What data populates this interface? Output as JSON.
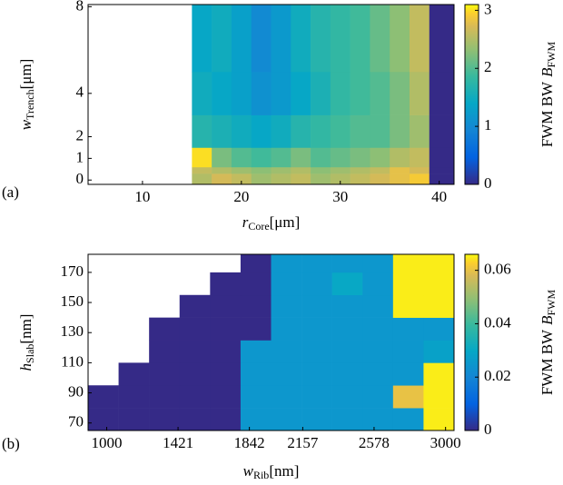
{
  "chart_data": [
    {
      "type": "heatmap",
      "panel_label": "(a)",
      "xlabel": {
        "symbol": "r",
        "subscript": "Core",
        "unit": "[μm]"
      },
      "ylabel": {
        "symbol": "w",
        "subscript": "Trench",
        "unit": "[μm]"
      },
      "colorbar_label": {
        "text": "FWM BW",
        "symbol": "B",
        "subscript": "FWM"
      },
      "colormap": "parula",
      "xlim": [
        4.5,
        41.5
      ],
      "ylim": [
        -0.2,
        8.1
      ],
      "xticks": [
        10,
        20,
        30,
        40
      ],
      "yticks": [
        0,
        1,
        2,
        4,
        8
      ],
      "clim": [
        0,
        3.1
      ],
      "cticks": [
        0,
        1,
        2,
        3
      ],
      "x_edges": [
        15,
        17,
        19,
        21,
        23,
        25,
        27,
        29,
        31,
        33,
        35,
        37,
        39,
        41.5
      ],
      "y_edges": [
        -0.2,
        0.3,
        0.6,
        1.5,
        3,
        5,
        8.1
      ],
      "values": [
        [
          2.5,
          2.7,
          2.6,
          2.4,
          2.5,
          2.6,
          2.4,
          2.5,
          2.6,
          2.7,
          2.8,
          2.9,
          0
        ],
        [
          2.6,
          2.5,
          2.4,
          2.3,
          2.4,
          2.5,
          2.3,
          2.4,
          2.5,
          2.6,
          2.8,
          2.7,
          0
        ],
        [
          3.0,
          2.2,
          2.0,
          1.9,
          2.0,
          2.2,
          2.0,
          2.1,
          2.2,
          2.3,
          2.5,
          2.6,
          0
        ],
        [
          1.7,
          1.6,
          1.5,
          1.4,
          1.5,
          1.7,
          1.8,
          1.9,
          2.0,
          2.0,
          2.2,
          2.4,
          0
        ],
        [
          1.5,
          1.4,
          1.3,
          1.1,
          1.2,
          1.4,
          1.6,
          1.8,
          1.9,
          2.0,
          2.2,
          2.5,
          0
        ],
        [
          1.4,
          1.5,
          1.3,
          1.0,
          1.2,
          1.5,
          1.7,
          1.8,
          1.9,
          2.1,
          2.3,
          2.6,
          0
        ]
      ]
    },
    {
      "type": "heatmap",
      "panel_label": "(b)",
      "xlabel": {
        "symbol": "w",
        "subscript": "Rib",
        "unit": "[nm]"
      },
      "ylabel": {
        "symbol": "h",
        "subscript": "Slab",
        "unit": "[nm]"
      },
      "colorbar_label": {
        "text": "FWM BW",
        "symbol": "B",
        "subscript": "FWM"
      },
      "colormap": "parula",
      "xlim": [
        890,
        3050
      ],
      "ylim": [
        65,
        182
      ],
      "xticks": [
        1000,
        1421,
        1842,
        2157,
        2578,
        3000
      ],
      "yticks": [
        70,
        90,
        110,
        130,
        150,
        170
      ],
      "clim": [
        0,
        0.066
      ],
      "cticks": [
        0,
        0.02,
        0.04,
        0.06
      ],
      "x_edges": [
        890,
        1070,
        1250,
        1430,
        1610,
        1790,
        1970,
        2150,
        2330,
        2510,
        2690,
        2870,
        3050
      ],
      "y_edges": [
        65,
        80,
        95,
        110,
        125,
        140,
        155,
        170,
        182
      ],
      "values": [
        [
          0,
          0,
          0,
          0,
          0,
          0.025,
          0.025,
          0.025,
          0.025,
          0.025,
          0.025,
          0.065
        ],
        [
          0,
          0,
          0,
          0,
          0,
          0.025,
          0.025,
          0.025,
          0.025,
          0.025,
          0.06,
          0.065
        ],
        [
          null,
          0,
          0,
          0,
          0,
          0.025,
          0.025,
          0.025,
          0.025,
          0.025,
          0.025,
          0.065
        ],
        [
          null,
          null,
          0,
          0,
          0,
          0.025,
          0.025,
          0.025,
          0.025,
          0.025,
          0.025,
          0.028
        ],
        [
          null,
          null,
          0,
          0,
          0,
          0,
          0.025,
          0.025,
          0.025,
          0.025,
          0.025,
          0.025
        ],
        [
          null,
          null,
          null,
          0,
          0,
          0,
          0.025,
          0.025,
          0.025,
          0.025,
          0.065,
          0.065
        ],
        [
          null,
          null,
          null,
          null,
          0,
          0,
          0.025,
          0.025,
          0.03,
          0.025,
          0.065,
          0.065
        ],
        [
          null,
          null,
          null,
          null,
          null,
          0,
          0.025,
          0.025,
          0.025,
          0.025,
          0.065,
          0.065
        ]
      ]
    }
  ]
}
